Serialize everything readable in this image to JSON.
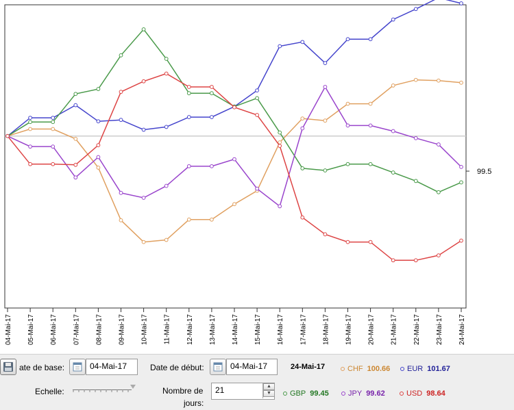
{
  "chart_data": {
    "type": "line",
    "x": [
      "04-Mai-17",
      "05-Mai-17",
      "06-Mai-17",
      "07-Mai-17",
      "08-Mai-17",
      "09-Mai-17",
      "10-Mai-17",
      "11-Mai-17",
      "12-Mai-17",
      "13-Mai-17",
      "14-Mai-17",
      "15-Mai-17",
      "16-Mai-17",
      "17-Mai-17",
      "18-Mai-17",
      "19-Mai-17",
      "20-Mai-17",
      "21-Mai-17",
      "22-Mai-17",
      "23-Mai-17",
      "24-Mai-17"
    ],
    "baseline": 100,
    "y_tick_label": "99.5",
    "ylim": [
      97.55,
      101.87
    ],
    "series": [
      {
        "name": "CHF",
        "color": "#e0a060",
        "values": [
          100,
          100.1,
          100.1,
          99.96,
          99.55,
          98.8,
          98.49,
          98.52,
          98.81,
          98.81,
          99.03,
          99.22,
          99.91,
          100.25,
          100.22,
          100.46,
          100.46,
          100.72,
          100.8,
          100.79,
          100.76
        ]
      },
      {
        "name": "EUR",
        "color": "#4444cc",
        "values": [
          100,
          100.26,
          100.26,
          100.44,
          100.21,
          100.23,
          100.09,
          100.13,
          100.27,
          100.27,
          100.42,
          100.65,
          101.28,
          101.34,
          101.04,
          101.38,
          101.38,
          101.66,
          101.81,
          101.97,
          101.89
        ]
      },
      {
        "name": "GBP",
        "color": "#4a9a4a",
        "values": [
          100,
          100.2,
          100.2,
          100.6,
          100.67,
          101.15,
          101.52,
          101.1,
          100.61,
          100.61,
          100.42,
          100.54,
          100.05,
          99.54,
          99.51,
          99.6,
          99.6,
          99.48,
          99.36,
          99.2,
          99.34
        ]
      },
      {
        "name": "JPY",
        "color": "#9944cc",
        "values": [
          100,
          99.85,
          99.85,
          99.41,
          99.7,
          99.19,
          99.12,
          99.29,
          99.57,
          99.57,
          99.67,
          99.25,
          99.0,
          100.11,
          100.7,
          100.15,
          100.15,
          100.07,
          99.97,
          99.88,
          99.56
        ]
      },
      {
        "name": "USD",
        "color": "#dd4444",
        "values": [
          100,
          99.6,
          99.6,
          99.59,
          99.87,
          100.63,
          100.78,
          100.89,
          100.7,
          100.7,
          100.41,
          100.3,
          99.86,
          98.84,
          98.6,
          98.49,
          98.49,
          98.23,
          98.23,
          98.3,
          98.51
        ]
      }
    ]
  },
  "controls": {
    "base_date_label": "ate de base:",
    "base_date_value": "04-Mai-17",
    "start_date_label": "Date de début:",
    "start_date_value": "04-Mai-17",
    "end_date": "24-Mai-17",
    "scale_label": "Echelle:",
    "days_label_line1": "Nombre de",
    "days_label_line2": "jours:",
    "days_value": "21"
  },
  "legend": [
    {
      "name": "CHF",
      "value": "100.66",
      "color": "#e0a060",
      "text_color": "#cc8833"
    },
    {
      "name": "EUR",
      "value": "101.67",
      "color": "#4444cc",
      "text_color": "#222299"
    },
    {
      "name": "GBP",
      "value": "99.45",
      "color": "#4a9a4a",
      "text_color": "#227722"
    },
    {
      "name": "JPY",
      "value": "99.62",
      "color": "#9944cc",
      "text_color": "#7722aa"
    },
    {
      "name": "USD",
      "value": "98.64",
      "color": "#dd4444",
      "text_color": "#cc2222"
    }
  ],
  "icons": {
    "save": "save-icon",
    "calendar": "calendar-icon",
    "spin_up": "spin-up-icon",
    "spin_down": "spin-down-icon",
    "slider_thumb": "slider-thumb-icon"
  }
}
